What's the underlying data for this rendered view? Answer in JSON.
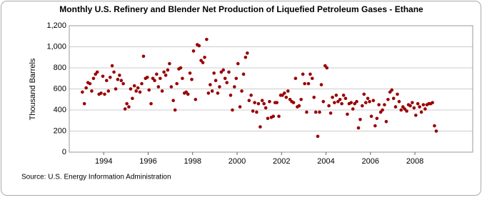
{
  "chart_data": {
    "type": "scatter",
    "title": "Monthly U.S. Refinery and Blender Net Production of Liquefied Petroleum Gases - Ethane",
    "y_label": "Thousand Barrels",
    "source": "Source: U.S. Energy Information Administration",
    "color": "#990000",
    "grid": true,
    "xlim": [
      1992.45,
      2010.6
    ],
    "ylim": [
      0,
      1200
    ],
    "xticks": [
      1994,
      1996,
      1998,
      2000,
      2002,
      2004,
      2006,
      2008
    ],
    "yticks": [
      0,
      200,
      400,
      600,
      800,
      {
        "value": 1000,
        "label": "1,000"
      },
      {
        "value": 1200,
        "label": "1,200"
      }
    ],
    "x": [
      1993.04,
      1993.13,
      1993.21,
      1993.29,
      1993.38,
      1993.46,
      1993.54,
      1993.63,
      1993.71,
      1993.79,
      1993.88,
      1993.96,
      1994.04,
      1994.13,
      1994.21,
      1994.29,
      1994.38,
      1994.46,
      1994.54,
      1994.63,
      1994.71,
      1994.79,
      1994.88,
      1994.96,
      1995.04,
      1995.13,
      1995.21,
      1995.29,
      1995.38,
      1995.46,
      1995.54,
      1995.63,
      1995.71,
      1995.79,
      1995.88,
      1995.96,
      1996.04,
      1996.13,
      1996.21,
      1996.29,
      1996.38,
      1996.46,
      1996.54,
      1996.63,
      1996.71,
      1996.79,
      1996.88,
      1996.96,
      1997.04,
      1997.13,
      1997.21,
      1997.29,
      1997.38,
      1997.46,
      1997.54,
      1997.63,
      1997.71,
      1997.79,
      1997.88,
      1997.96,
      1998.04,
      1998.13,
      1998.21,
      1998.29,
      1998.38,
      1998.46,
      1998.54,
      1998.63,
      1998.71,
      1998.79,
      1998.88,
      1998.96,
      1999.04,
      1999.13,
      1999.21,
      1999.29,
      1999.38,
      1999.46,
      1999.54,
      1999.63,
      1999.71,
      1999.79,
      1999.88,
      1999.96,
      2000.04,
      2000.13,
      2000.21,
      2000.29,
      2000.38,
      2000.46,
      2000.54,
      2000.63,
      2000.71,
      2000.79,
      2000.88,
      2000.96,
      2001.04,
      2001.13,
      2001.21,
      2001.29,
      2001.38,
      2001.46,
      2001.54,
      2001.63,
      2001.71,
      2001.79,
      2001.88,
      2001.96,
      2002.04,
      2002.13,
      2002.21,
      2002.29,
      2002.38,
      2002.46,
      2002.54,
      2002.63,
      2002.71,
      2002.79,
      2002.88,
      2002.96,
      2003.04,
      2003.13,
      2003.21,
      2003.29,
      2003.38,
      2003.46,
      2003.54,
      2003.63,
      2003.71,
      2003.79,
      2003.88,
      2003.96,
      2004.04,
      2004.13,
      2004.21,
      2004.29,
      2004.38,
      2004.46,
      2004.54,
      2004.63,
      2004.71,
      2004.79,
      2004.88,
      2004.96,
      2005.04,
      2005.13,
      2005.21,
      2005.29,
      2005.38,
      2005.46,
      2005.54,
      2005.63,
      2005.71,
      2005.79,
      2005.88,
      2005.96,
      2006.04,
      2006.13,
      2006.21,
      2006.29,
      2006.38,
      2006.46,
      2006.54,
      2006.63,
      2006.71,
      2006.79,
      2006.88,
      2006.96,
      2007.04,
      2007.13,
      2007.21,
      2007.29,
      2007.38,
      2007.46,
      2007.54,
      2007.63,
      2007.71,
      2007.79,
      2007.88,
      2007.96,
      2008.04,
      2008.13,
      2008.21,
      2008.29,
      2008.38,
      2008.46,
      2008.54,
      2008.63,
      2008.71,
      2008.79,
      2008.88,
      2008.96
    ],
    "values": [
      570,
      460,
      610,
      660,
      650,
      580,
      700,
      740,
      760,
      550,
      560,
      720,
      550,
      680,
      580,
      710,
      820,
      760,
      600,
      690,
      730,
      680,
      650,
      410,
      460,
      430,
      600,
      510,
      630,
      580,
      610,
      570,
      650,
      910,
      700,
      710,
      590,
      460,
      700,
      680,
      740,
      620,
      700,
      580,
      760,
      730,
      780,
      840,
      620,
      490,
      400,
      650,
      790,
      800,
      700,
      560,
      570,
      550,
      750,
      690,
      960,
      500,
      1020,
      1010,
      870,
      850,
      900,
      1070,
      560,
      640,
      580,
      750,
      680,
      560,
      620,
      760,
      780,
      700,
      660,
      760,
      540,
      400,
      620,
      700,
      840,
      430,
      580,
      740,
      900,
      940,
      490,
      540,
      390,
      470,
      380,
      460,
      240,
      490,
      460,
      420,
      320,
      480,
      330,
      340,
      470,
      470,
      340,
      540,
      540,
      560,
      520,
      580,
      500,
      480,
      470,
      700,
      430,
      440,
      500,
      740,
      650,
      380,
      650,
      740,
      700,
      520,
      380,
      150,
      380,
      640,
      480,
      820,
      800,
      440,
      370,
      520,
      470,
      540,
      480,
      500,
      460,
      540,
      510,
      360,
      460,
      470,
      410,
      460,
      480,
      230,
      310,
      440,
      550,
      470,
      510,
      480,
      340,
      490,
      250,
      320,
      450,
      380,
      400,
      450,
      290,
      500,
      570,
      590,
      510,
      430,
      550,
      480,
      400,
      430,
      410,
      390,
      450,
      440,
      470,
      420,
      350,
      460,
      430,
      380,
      450,
      410,
      450,
      460,
      460,
      470,
      250,
      200
    ]
  }
}
